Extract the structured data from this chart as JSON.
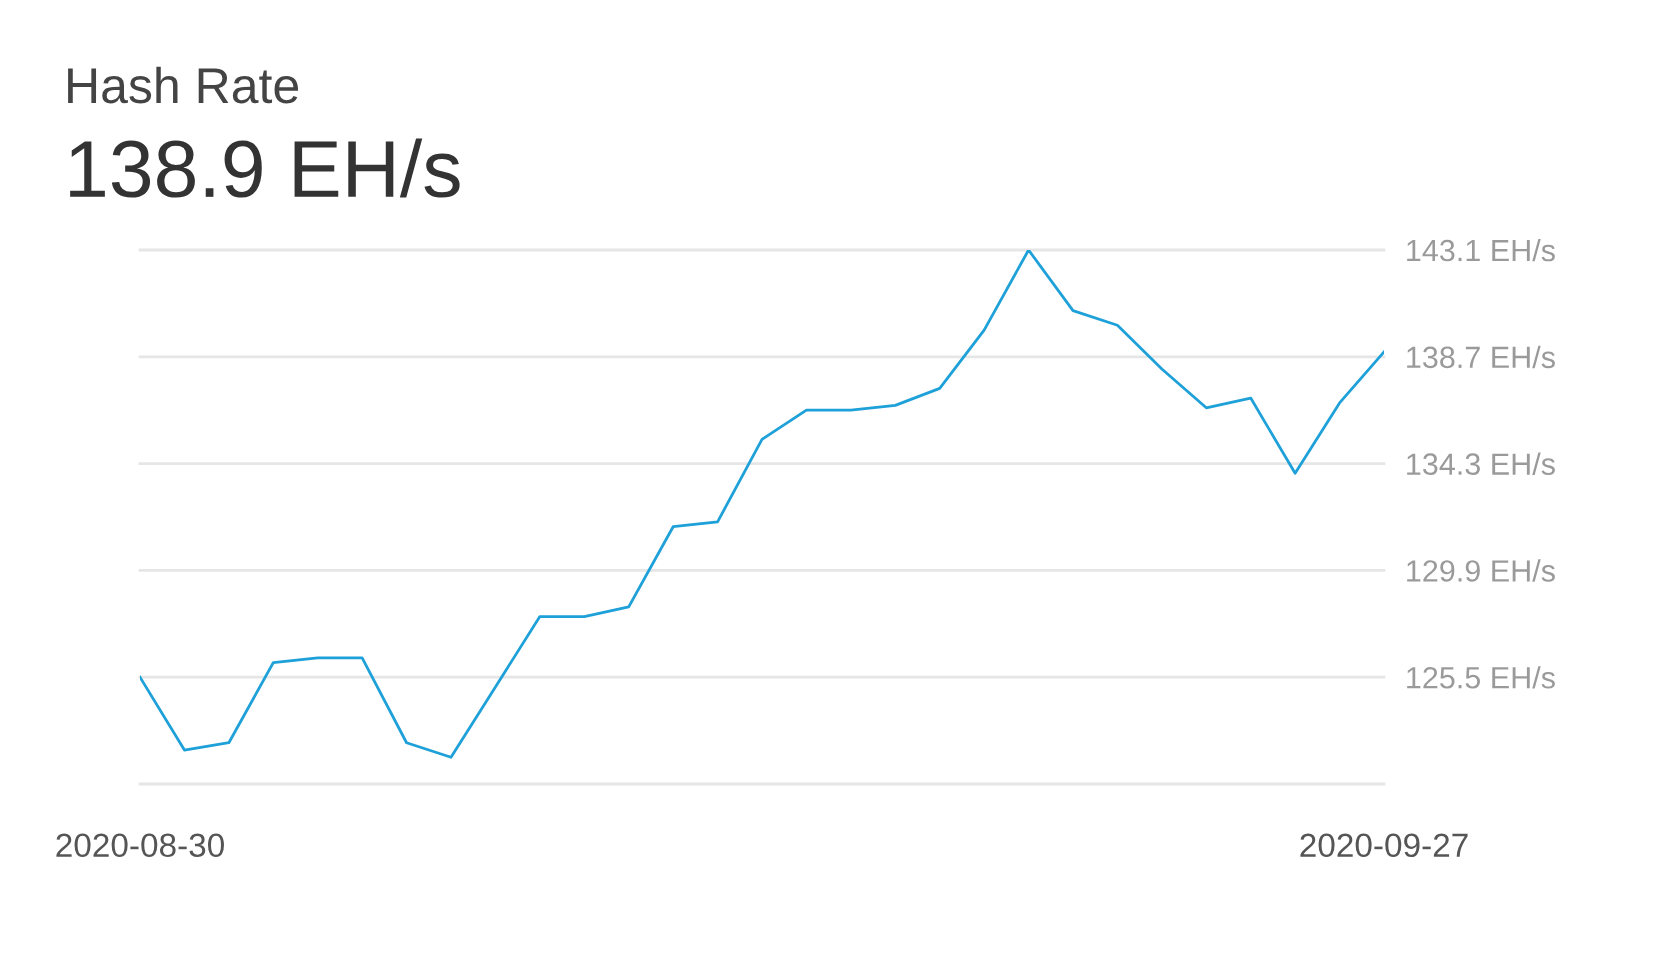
{
  "chart_data": {
    "type": "line",
    "title": "Hash Rate",
    "subtitle": "138.9 EH/s",
    "x": [
      "2020-08-30",
      "2020-08-31",
      "2020-09-01",
      "2020-09-02",
      "2020-09-03",
      "2020-09-04",
      "2020-09-05",
      "2020-09-06",
      "2020-09-07",
      "2020-09-08",
      "2020-09-09",
      "2020-09-10",
      "2020-09-11",
      "2020-09-12",
      "2020-09-13",
      "2020-09-14",
      "2020-09-15",
      "2020-09-16",
      "2020-09-17",
      "2020-09-18",
      "2020-09-19",
      "2020-09-20",
      "2020-09-21",
      "2020-09-22",
      "2020-09-23",
      "2020-09-24",
      "2020-09-25",
      "2020-09-26",
      "2020-09-27"
    ],
    "series": [
      {
        "color": "#1ea0d8",
        "values": [
          125.5,
          122.5,
          122.8,
          126.1,
          126.3,
          126.3,
          122.8,
          122.2,
          125.1,
          128.0,
          128.0,
          128.4,
          131.7,
          131.9,
          135.3,
          136.5,
          136.5,
          136.7,
          137.4,
          139.8,
          143.1,
          140.6,
          140.0,
          138.2,
          136.6,
          137.0,
          133.9,
          136.8,
          138.9
        ]
      }
    ],
    "xlim": [
      "2020-08-30",
      "2020-09-27"
    ],
    "xticks": [
      {
        "value": "2020-08-30",
        "label": "2020-08-30"
      },
      {
        "value": "2020-09-27",
        "label": "2020-09-27"
      }
    ],
    "ylim": [
      121.1,
      143.1
    ],
    "yticks": [
      {
        "value": 121.1,
        "label": null
      },
      {
        "value": 125.5,
        "label": "125.5 EH/s"
      },
      {
        "value": 129.9,
        "label": "129.9 EH/s"
      },
      {
        "value": 134.3,
        "label": "134.3 EH/s"
      },
      {
        "value": 138.7,
        "label": "138.7 EH/s"
      },
      {
        "value": 143.1,
        "label": "143.1 EH/s"
      }
    ],
    "grid": "y",
    "legend": false,
    "marker": "none",
    "line_style": "solid"
  }
}
